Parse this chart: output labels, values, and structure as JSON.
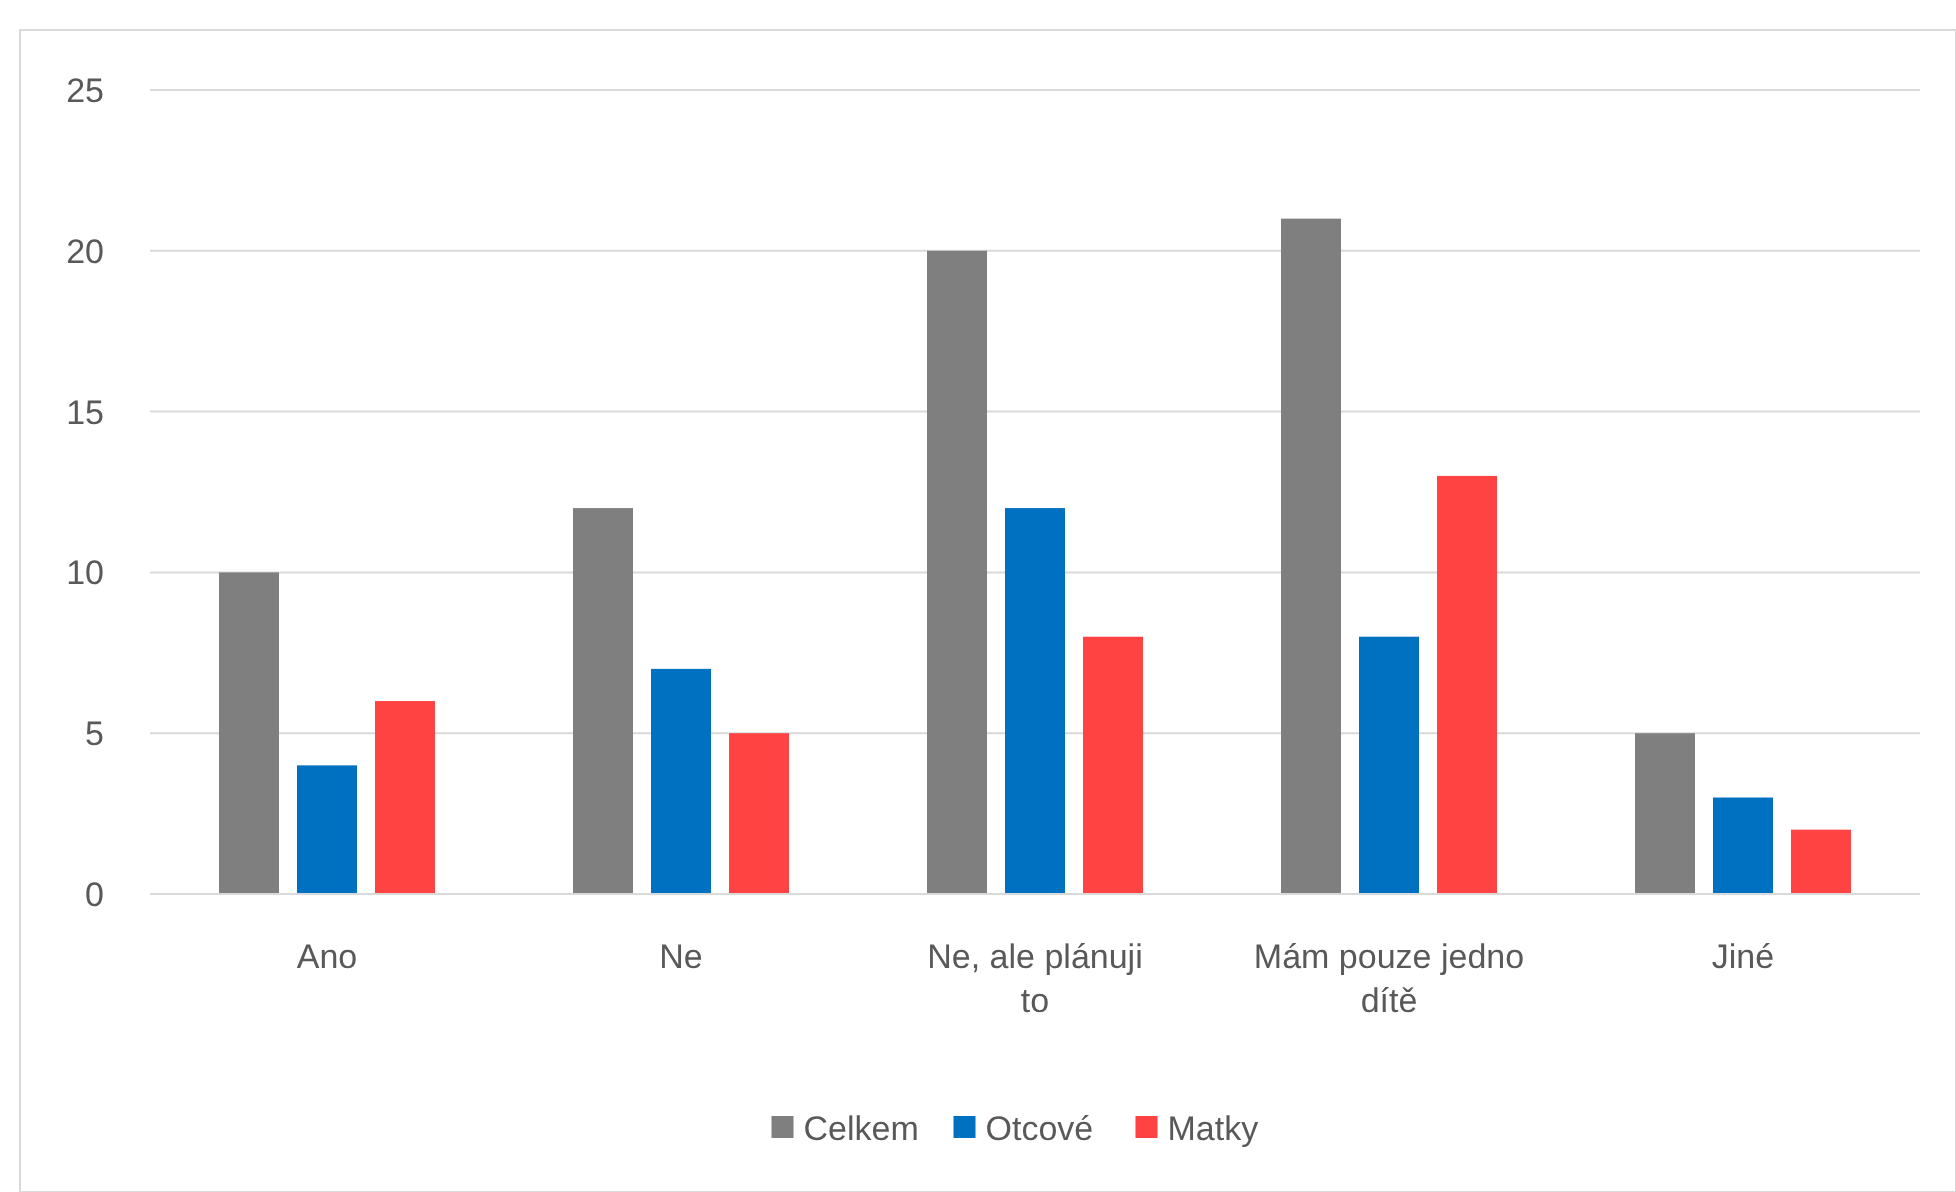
{
  "chart_data": {
    "type": "bar",
    "categories": [
      "Ano",
      "Ne",
      "Ne, ale plánuji to",
      "Mám pouze jedno dítě",
      "Jiné"
    ],
    "series": [
      {
        "name": "Celkem",
        "color": "#7f7f7f",
        "values": [
          10,
          12,
          20,
          21,
          5
        ]
      },
      {
        "name": "Otcové",
        "color": "#0070c0",
        "values": [
          4,
          7,
          12,
          8,
          3
        ]
      },
      {
        "name": "Matky",
        "color": "#ff4343",
        "values": [
          6,
          5,
          8,
          13,
          2
        ]
      }
    ],
    "ylim": [
      0,
      25
    ],
    "yticks": [
      0,
      5,
      10,
      15,
      20,
      25
    ],
    "grid": "y",
    "legend": "bottom"
  }
}
